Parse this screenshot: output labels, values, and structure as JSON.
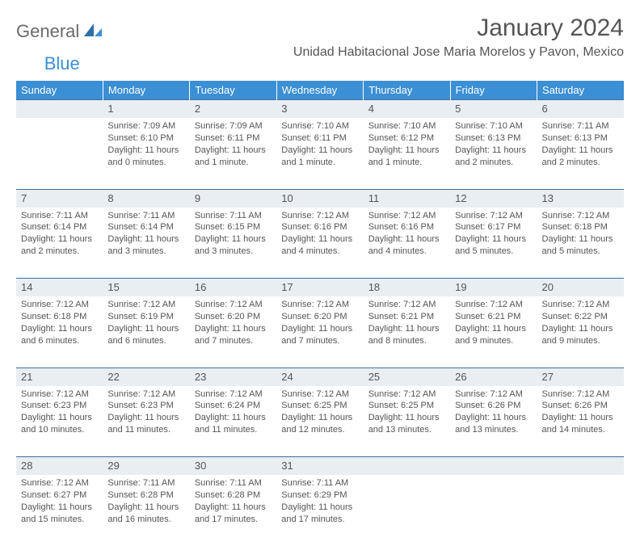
{
  "brand": {
    "part1": "General",
    "part2": "Blue"
  },
  "title": "January 2024",
  "location": "Unidad Habitacional Jose Maria Morelos y Pavon, Mexico",
  "colors": {
    "header_bg": "#3b8fd4",
    "daynum_bg": "#e9eef2",
    "rule": "#3b6e9e",
    "text": "#555555"
  },
  "weekdays": [
    "Sunday",
    "Monday",
    "Tuesday",
    "Wednesday",
    "Thursday",
    "Friday",
    "Saturday"
  ],
  "weeks": [
    [
      null,
      {
        "n": "1",
        "l1": "Sunrise: 7:09 AM",
        "l2": "Sunset: 6:10 PM",
        "l3": "Daylight: 11 hours",
        "l4": "and 0 minutes."
      },
      {
        "n": "2",
        "l1": "Sunrise: 7:09 AM",
        "l2": "Sunset: 6:11 PM",
        "l3": "Daylight: 11 hours",
        "l4": "and 1 minute."
      },
      {
        "n": "3",
        "l1": "Sunrise: 7:10 AM",
        "l2": "Sunset: 6:11 PM",
        "l3": "Daylight: 11 hours",
        "l4": "and 1 minute."
      },
      {
        "n": "4",
        "l1": "Sunrise: 7:10 AM",
        "l2": "Sunset: 6:12 PM",
        "l3": "Daylight: 11 hours",
        "l4": "and 1 minute."
      },
      {
        "n": "5",
        "l1": "Sunrise: 7:10 AM",
        "l2": "Sunset: 6:13 PM",
        "l3": "Daylight: 11 hours",
        "l4": "and 2 minutes."
      },
      {
        "n": "6",
        "l1": "Sunrise: 7:11 AM",
        "l2": "Sunset: 6:13 PM",
        "l3": "Daylight: 11 hours",
        "l4": "and 2 minutes."
      }
    ],
    [
      {
        "n": "7",
        "l1": "Sunrise: 7:11 AM",
        "l2": "Sunset: 6:14 PM",
        "l3": "Daylight: 11 hours",
        "l4": "and 2 minutes."
      },
      {
        "n": "8",
        "l1": "Sunrise: 7:11 AM",
        "l2": "Sunset: 6:14 PM",
        "l3": "Daylight: 11 hours",
        "l4": "and 3 minutes."
      },
      {
        "n": "9",
        "l1": "Sunrise: 7:11 AM",
        "l2": "Sunset: 6:15 PM",
        "l3": "Daylight: 11 hours",
        "l4": "and 3 minutes."
      },
      {
        "n": "10",
        "l1": "Sunrise: 7:12 AM",
        "l2": "Sunset: 6:16 PM",
        "l3": "Daylight: 11 hours",
        "l4": "and 4 minutes."
      },
      {
        "n": "11",
        "l1": "Sunrise: 7:12 AM",
        "l2": "Sunset: 6:16 PM",
        "l3": "Daylight: 11 hours",
        "l4": "and 4 minutes."
      },
      {
        "n": "12",
        "l1": "Sunrise: 7:12 AM",
        "l2": "Sunset: 6:17 PM",
        "l3": "Daylight: 11 hours",
        "l4": "and 5 minutes."
      },
      {
        "n": "13",
        "l1": "Sunrise: 7:12 AM",
        "l2": "Sunset: 6:18 PM",
        "l3": "Daylight: 11 hours",
        "l4": "and 5 minutes."
      }
    ],
    [
      {
        "n": "14",
        "l1": "Sunrise: 7:12 AM",
        "l2": "Sunset: 6:18 PM",
        "l3": "Daylight: 11 hours",
        "l4": "and 6 minutes."
      },
      {
        "n": "15",
        "l1": "Sunrise: 7:12 AM",
        "l2": "Sunset: 6:19 PM",
        "l3": "Daylight: 11 hours",
        "l4": "and 6 minutes."
      },
      {
        "n": "16",
        "l1": "Sunrise: 7:12 AM",
        "l2": "Sunset: 6:20 PM",
        "l3": "Daylight: 11 hours",
        "l4": "and 7 minutes."
      },
      {
        "n": "17",
        "l1": "Sunrise: 7:12 AM",
        "l2": "Sunset: 6:20 PM",
        "l3": "Daylight: 11 hours",
        "l4": "and 7 minutes."
      },
      {
        "n": "18",
        "l1": "Sunrise: 7:12 AM",
        "l2": "Sunset: 6:21 PM",
        "l3": "Daylight: 11 hours",
        "l4": "and 8 minutes."
      },
      {
        "n": "19",
        "l1": "Sunrise: 7:12 AM",
        "l2": "Sunset: 6:21 PM",
        "l3": "Daylight: 11 hours",
        "l4": "and 9 minutes."
      },
      {
        "n": "20",
        "l1": "Sunrise: 7:12 AM",
        "l2": "Sunset: 6:22 PM",
        "l3": "Daylight: 11 hours",
        "l4": "and 9 minutes."
      }
    ],
    [
      {
        "n": "21",
        "l1": "Sunrise: 7:12 AM",
        "l2": "Sunset: 6:23 PM",
        "l3": "Daylight: 11 hours",
        "l4": "and 10 minutes."
      },
      {
        "n": "22",
        "l1": "Sunrise: 7:12 AM",
        "l2": "Sunset: 6:23 PM",
        "l3": "Daylight: 11 hours",
        "l4": "and 11 minutes."
      },
      {
        "n": "23",
        "l1": "Sunrise: 7:12 AM",
        "l2": "Sunset: 6:24 PM",
        "l3": "Daylight: 11 hours",
        "l4": "and 11 minutes."
      },
      {
        "n": "24",
        "l1": "Sunrise: 7:12 AM",
        "l2": "Sunset: 6:25 PM",
        "l3": "Daylight: 11 hours",
        "l4": "and 12 minutes."
      },
      {
        "n": "25",
        "l1": "Sunrise: 7:12 AM",
        "l2": "Sunset: 6:25 PM",
        "l3": "Daylight: 11 hours",
        "l4": "and 13 minutes."
      },
      {
        "n": "26",
        "l1": "Sunrise: 7:12 AM",
        "l2": "Sunset: 6:26 PM",
        "l3": "Daylight: 11 hours",
        "l4": "and 13 minutes."
      },
      {
        "n": "27",
        "l1": "Sunrise: 7:12 AM",
        "l2": "Sunset: 6:26 PM",
        "l3": "Daylight: 11 hours",
        "l4": "and 14 minutes."
      }
    ],
    [
      {
        "n": "28",
        "l1": "Sunrise: 7:12 AM",
        "l2": "Sunset: 6:27 PM",
        "l3": "Daylight: 11 hours",
        "l4": "and 15 minutes."
      },
      {
        "n": "29",
        "l1": "Sunrise: 7:11 AM",
        "l2": "Sunset: 6:28 PM",
        "l3": "Daylight: 11 hours",
        "l4": "and 16 minutes."
      },
      {
        "n": "30",
        "l1": "Sunrise: 7:11 AM",
        "l2": "Sunset: 6:28 PM",
        "l3": "Daylight: 11 hours",
        "l4": "and 17 minutes."
      },
      {
        "n": "31",
        "l1": "Sunrise: 7:11 AM",
        "l2": "Sunset: 6:29 PM",
        "l3": "Daylight: 11 hours",
        "l4": "and 17 minutes."
      },
      null,
      null,
      null
    ]
  ]
}
